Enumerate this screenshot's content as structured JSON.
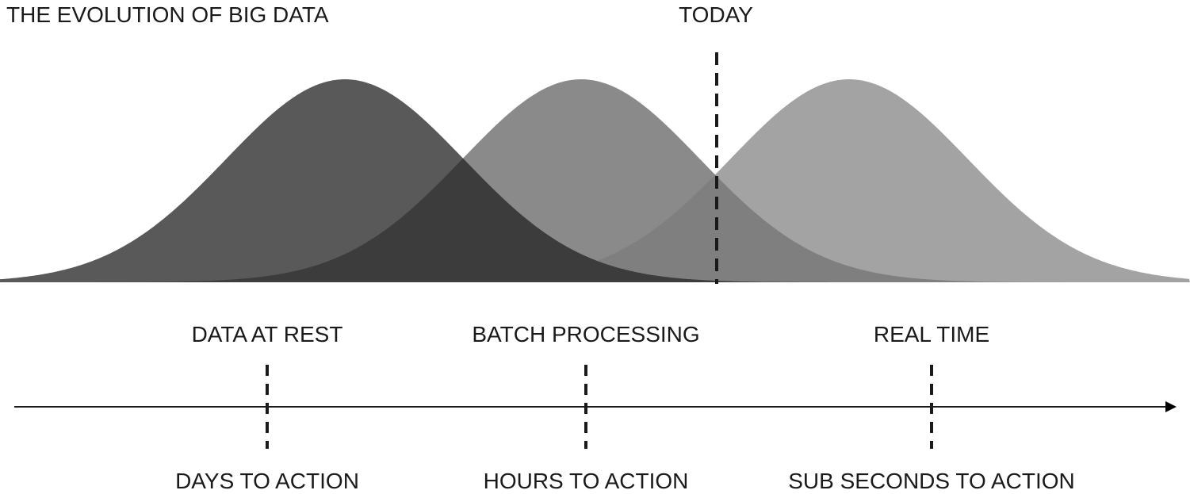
{
  "title": "THE EVOLUTION OF BIG DATA",
  "today_label": "TODAY",
  "stages": [
    {
      "label": "DATA AT REST",
      "outcome": "DAYS TO ACTION",
      "color": "#595959"
    },
    {
      "label": "BATCH PROCESSING",
      "outcome": "HOURS TO ACTION",
      "color": "#7a7a7a"
    },
    {
      "label": "REAL TIME",
      "outcome": "SUB SECONDS TO ACTION",
      "color": "#a3a3a3"
    }
  ],
  "overlap_color": "#3c3c3c",
  "line_color": "#1a1a1a",
  "background": "#ffffff"
}
